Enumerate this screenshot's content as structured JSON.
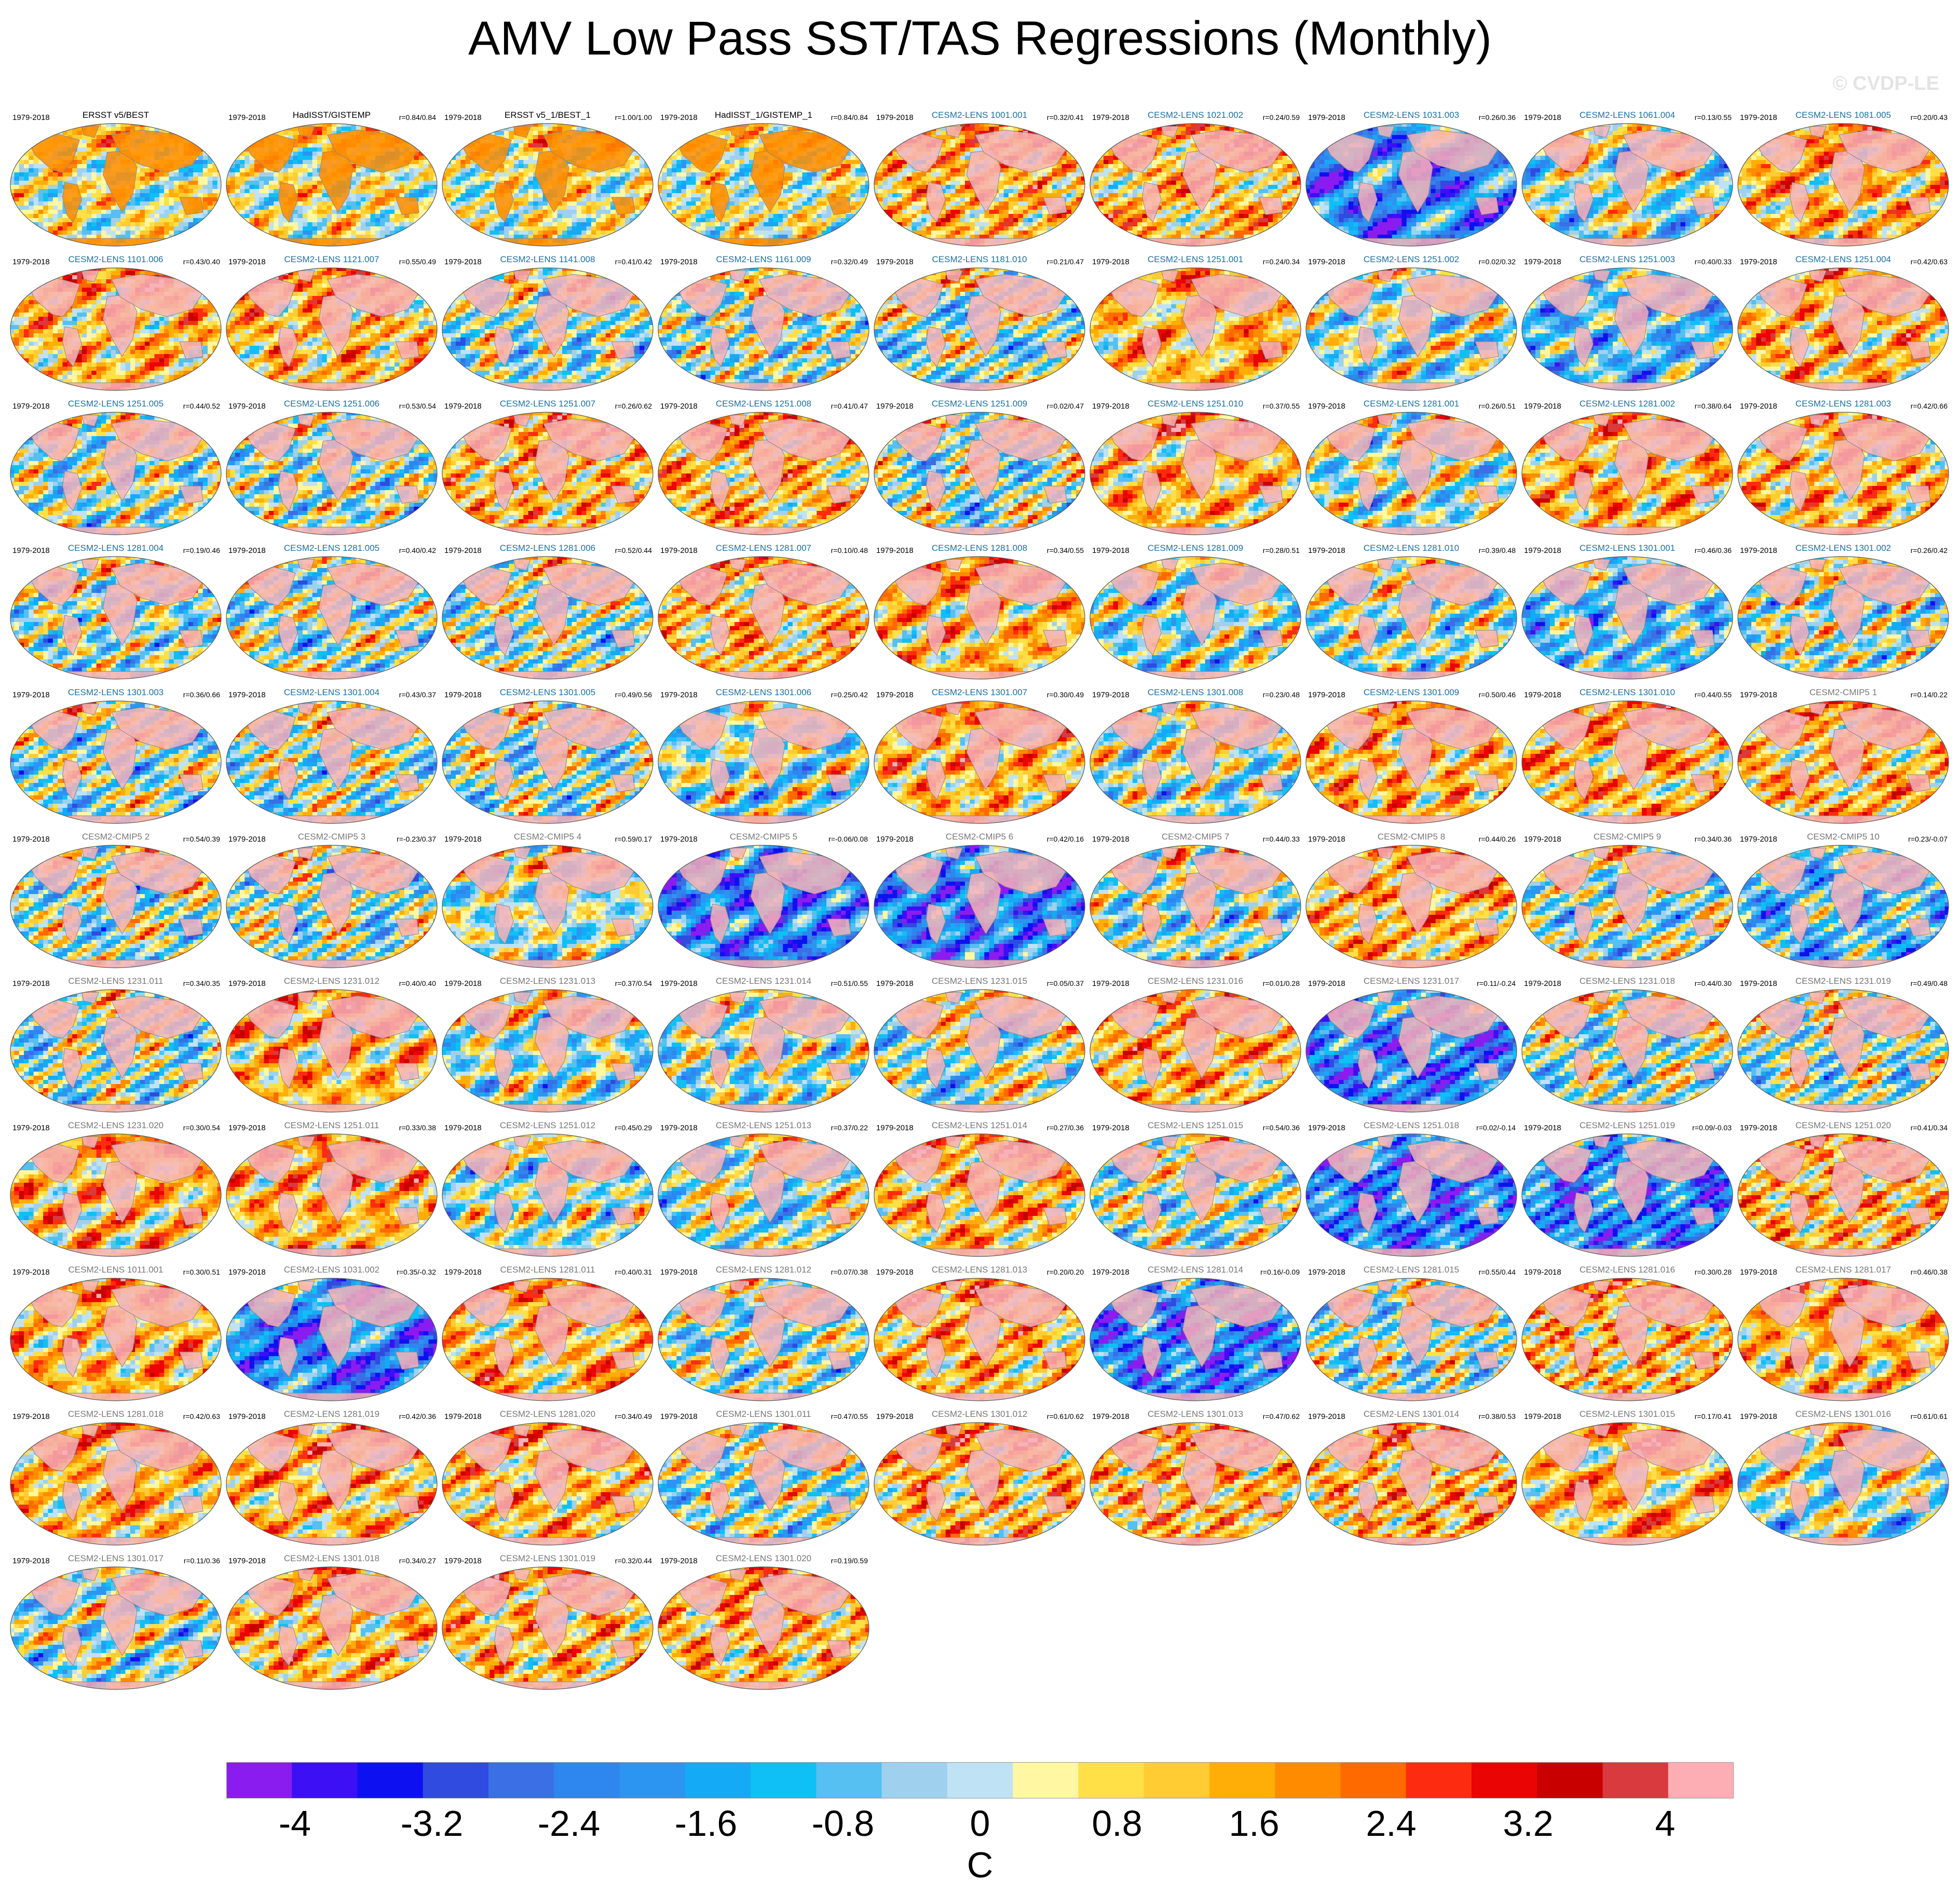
{
  "title": "AMV Low Pass SST/TAS Regressions (Monthly)",
  "watermark": "© CVDP-LE",
  "colors": {
    "obs_title": "#000000",
    "lens_title": "#1a6fa3",
    "cmip_title": "#777777",
    "land_mask": "#f6b3b8",
    "coast": "#888888"
  },
  "chart_data": {
    "type": "heatmap",
    "projection": "global map",
    "period": "1979-2018",
    "panel_columns": 9,
    "panels": [
      {
        "title": "ERSST v5/BEST",
        "r": "",
        "kind": "obs",
        "pattern": "obs"
      },
      {
        "title": "HadISST/GISTEMP",
        "r": "r=0.84/0.84",
        "kind": "obs",
        "pattern": "obs"
      },
      {
        "title": "ERSST v5_1/BEST_1",
        "r": "r=1.00/1.00",
        "kind": "obs",
        "pattern": "obs"
      },
      {
        "title": "HadISST_1/GISTEMP_1",
        "r": "r=0.84/0.84",
        "kind": "obs",
        "pattern": "obs"
      },
      {
        "title": "CESM2-LENS 1001.001",
        "r": "r=0.32/0.41",
        "kind": "lens",
        "pattern": "warm"
      },
      {
        "title": "CESM2-LENS 1021.002",
        "r": "r=0.24/0.59",
        "kind": "lens",
        "pattern": "warm"
      },
      {
        "title": "CESM2-LENS 1031.003",
        "r": "r=0.26/0.36",
        "kind": "lens",
        "pattern": "strongcold"
      },
      {
        "title": "CESM2-LENS 1061.004",
        "r": "r=0.13/0.55",
        "kind": "lens",
        "pattern": "mixed"
      },
      {
        "title": "CESM2-LENS 1081.005",
        "r": "r=0.20/0.43",
        "kind": "lens",
        "pattern": "warm"
      },
      {
        "title": "CESM2-LENS 1101.006",
        "r": "r=0.43/0.40",
        "kind": "lens",
        "pattern": "warm"
      },
      {
        "title": "CESM2-LENS 1121.007",
        "r": "r=0.55/0.49",
        "kind": "lens",
        "pattern": "warm"
      },
      {
        "title": "CESM2-LENS 1141.008",
        "r": "r=0.41/0.42",
        "kind": "lens",
        "pattern": "mixed"
      },
      {
        "title": "CESM2-LENS 1161.009",
        "r": "r=0.32/0.49",
        "kind": "lens",
        "pattern": "mixed"
      },
      {
        "title": "CESM2-LENS 1181.010",
        "r": "r=0.21/0.47",
        "kind": "lens",
        "pattern": "mixed"
      },
      {
        "title": "CESM2-LENS 1251.001",
        "r": "r=0.24/0.34",
        "kind": "lens",
        "pattern": "warm"
      },
      {
        "title": "CESM2-LENS 1251.002",
        "r": "r=0.02/0.32",
        "kind": "lens",
        "pattern": "mixed"
      },
      {
        "title": "CESM2-LENS 1251.003",
        "r": "r=0.40/0.33",
        "kind": "lens",
        "pattern": "cold"
      },
      {
        "title": "CESM2-LENS 1251.004",
        "r": "r=0.42/0.63",
        "kind": "lens",
        "pattern": "warm"
      },
      {
        "title": "CESM2-LENS 1251.005",
        "r": "r=0.44/0.52",
        "kind": "lens",
        "pattern": "mixed"
      },
      {
        "title": "CESM2-LENS 1251.006",
        "r": "r=0.53/0.54",
        "kind": "lens",
        "pattern": "mixed"
      },
      {
        "title": "CESM2-LENS 1251.007",
        "r": "r=0.26/0.62",
        "kind": "lens",
        "pattern": "warm"
      },
      {
        "title": "CESM2-LENS 1251.008",
        "r": "r=0.41/0.47",
        "kind": "lens",
        "pattern": "warm"
      },
      {
        "title": "CESM2-LENS 1251.009",
        "r": "r=0.02/0.47",
        "kind": "lens",
        "pattern": "mixed"
      },
      {
        "title": "CESM2-LENS 1251.010",
        "r": "r=0.37/0.55",
        "kind": "lens",
        "pattern": "warm"
      },
      {
        "title": "CESM2-LENS 1281.001",
        "r": "r=0.26/0.51",
        "kind": "lens",
        "pattern": "mixed"
      },
      {
        "title": "CESM2-LENS 1281.002",
        "r": "r=0.38/0.64",
        "kind": "lens",
        "pattern": "warm"
      },
      {
        "title": "CESM2-LENS 1281.003",
        "r": "r=0.42/0.66",
        "kind": "lens",
        "pattern": "warm"
      },
      {
        "title": "CESM2-LENS 1281.004",
        "r": "r=0.19/0.46",
        "kind": "lens",
        "pattern": "mixed"
      },
      {
        "title": "CESM2-LENS 1281.005",
        "r": "r=0.40/0.42",
        "kind": "lens",
        "pattern": "mixed"
      },
      {
        "title": "CESM2-LENS 1281.006",
        "r": "r=0.52/0.44",
        "kind": "lens",
        "pattern": "mixed"
      },
      {
        "title": "CESM2-LENS 1281.007",
        "r": "r=0.10/0.48",
        "kind": "lens",
        "pattern": "warm"
      },
      {
        "title": "CESM2-LENS 1281.008",
        "r": "r=0.34/0.55",
        "kind": "lens",
        "pattern": "warm"
      },
      {
        "title": "CESM2-LENS 1281.009",
        "r": "r=0.28/0.51",
        "kind": "lens",
        "pattern": "mixed"
      },
      {
        "title": "CESM2-LENS 1281.010",
        "r": "r=0.39/0.48",
        "kind": "lens",
        "pattern": "mixed"
      },
      {
        "title": "CESM2-LENS 1301.001",
        "r": "r=0.46/0.36",
        "kind": "lens",
        "pattern": "cold"
      },
      {
        "title": "CESM2-LENS 1301.002",
        "r": "r=0.26/0.42",
        "kind": "lens",
        "pattern": "mixed"
      },
      {
        "title": "CESM2-LENS 1301.003",
        "r": "r=0.36/0.66",
        "kind": "lens",
        "pattern": "mixed"
      },
      {
        "title": "CESM2-LENS 1301.004",
        "r": "r=0.43/0.37",
        "kind": "lens",
        "pattern": "mixed"
      },
      {
        "title": "CESM2-LENS 1301.005",
        "r": "r=0.49/0.56",
        "kind": "lens",
        "pattern": "mixed"
      },
      {
        "title": "CESM2-LENS 1301.006",
        "r": "r=0.25/0.42",
        "kind": "lens",
        "pattern": "mixed"
      },
      {
        "title": "CESM2-LENS 1301.007",
        "r": "r=0.30/0.49",
        "kind": "lens",
        "pattern": "warm"
      },
      {
        "title": "CESM2-LENS 1301.008",
        "r": "r=0.23/0.48",
        "kind": "lens",
        "pattern": "mixed"
      },
      {
        "title": "CESM2-LENS 1301.009",
        "r": "r=0.50/0.46",
        "kind": "lens",
        "pattern": "warm"
      },
      {
        "title": "CESM2-LENS 1301.010",
        "r": "r=0.44/0.55",
        "kind": "lens",
        "pattern": "warm"
      },
      {
        "title": "CESM2-CMIP5 1",
        "r": "r=0.14/0.22",
        "kind": "cmip",
        "pattern": "warm"
      },
      {
        "title": "CESM2-CMIP5 2",
        "r": "r=0.54/0.39",
        "kind": "cmip",
        "pattern": "mixed"
      },
      {
        "title": "CESM2-CMIP5 3",
        "r": "r=-0.23/0.37",
        "kind": "cmip",
        "pattern": "mixed"
      },
      {
        "title": "CESM2-CMIP5 4",
        "r": "r=0.59/0.17",
        "kind": "cmip",
        "pattern": "mixed"
      },
      {
        "title": "CESM2-CMIP5 5",
        "r": "r=-0.06/0.08",
        "kind": "cmip",
        "pattern": "strongcold"
      },
      {
        "title": "CESM2-CMIP5 6",
        "r": "r=0.42/0.16",
        "kind": "cmip",
        "pattern": "strongcold"
      },
      {
        "title": "CESM2-CMIP5 7",
        "r": "r=0.44/0.33",
        "kind": "cmip",
        "pattern": "mixed"
      },
      {
        "title": "CESM2-CMIP5 8",
        "r": "r=0.44/0.26",
        "kind": "cmip",
        "pattern": "warm"
      },
      {
        "title": "CESM2-CMIP5 9",
        "r": "r=0.34/0.36",
        "kind": "cmip",
        "pattern": "mixed"
      },
      {
        "title": "CESM2-CMIP5 10",
        "r": "r=0.23/-0.07",
        "kind": "cmip",
        "pattern": "cold"
      },
      {
        "title": "CESM2-LENS 1231.011",
        "r": "r=0.34/0.35",
        "kind": "cmip",
        "pattern": "mixed"
      },
      {
        "title": "CESM2-LENS 1231.012",
        "r": "r=0.40/0.40",
        "kind": "cmip",
        "pattern": "warm"
      },
      {
        "title": "CESM2-LENS 1231.013",
        "r": "r=0.37/0.54",
        "kind": "cmip",
        "pattern": "mixed"
      },
      {
        "title": "CESM2-LENS 1231.014",
        "r": "r=0.51/0.55",
        "kind": "cmip",
        "pattern": "mixed"
      },
      {
        "title": "CESM2-LENS 1231.015",
        "r": "r=0.05/0.37",
        "kind": "cmip",
        "pattern": "mixed"
      },
      {
        "title": "CESM2-LENS 1231.016",
        "r": "r=0.01/0.28",
        "kind": "cmip",
        "pattern": "warm"
      },
      {
        "title": "CESM2-LENS 1231.017",
        "r": "r=0.11/-0.24",
        "kind": "cmip",
        "pattern": "strongcold"
      },
      {
        "title": "CESM2-LENS 1231.018",
        "r": "r=0.44/0.30",
        "kind": "cmip",
        "pattern": "mixed"
      },
      {
        "title": "CESM2-LENS 1231.019",
        "r": "r=0.49/0.48",
        "kind": "cmip",
        "pattern": "mixed"
      },
      {
        "title": "CESM2-LENS 1231.020",
        "r": "r=0.30/0.54",
        "kind": "cmip",
        "pattern": "warm"
      },
      {
        "title": "CESM2-LENS 1251.011",
        "r": "r=0.33/0.38",
        "kind": "cmip",
        "pattern": "warm"
      },
      {
        "title": "CESM2-LENS 1251.012",
        "r": "r=0.45/0.29",
        "kind": "cmip",
        "pattern": "mixed"
      },
      {
        "title": "CESM2-LENS 1251.013",
        "r": "r=0.37/0.22",
        "kind": "cmip",
        "pattern": "mixed"
      },
      {
        "title": "CESM2-LENS 1251.014",
        "r": "r=0.27/0.36",
        "kind": "cmip",
        "pattern": "warm"
      },
      {
        "title": "CESM2-LENS 1251.015",
        "r": "r=0.54/0.36",
        "kind": "cmip",
        "pattern": "mixed"
      },
      {
        "title": "CESM2-LENS 1251.018",
        "r": "r=0.02/-0.14",
        "kind": "cmip",
        "pattern": "strongcold"
      },
      {
        "title": "CESM2-LENS 1251.019",
        "r": "r=0.09/-0.03",
        "kind": "cmip",
        "pattern": "strongcold"
      },
      {
        "title": "CESM2-LENS 1251.020",
        "r": "r=0.41/0.34",
        "kind": "cmip",
        "pattern": "warm"
      },
      {
        "title": "CESM2-LENS 1011.001",
        "r": "r=0.30/0.51",
        "kind": "cmip",
        "pattern": "warm"
      },
      {
        "title": "CESM2-LENS 1031.002",
        "r": "r=0.35/-0.32",
        "kind": "cmip",
        "pattern": "strongcold"
      },
      {
        "title": "CESM2-LENS 1281.011",
        "r": "r=0.40/0.31",
        "kind": "cmip",
        "pattern": "warm"
      },
      {
        "title": "CESM2-LENS 1281.012",
        "r": "r=0.07/0.38",
        "kind": "cmip",
        "pattern": "mixed"
      },
      {
        "title": "CESM2-LENS 1281.013",
        "r": "r=0.20/0.20",
        "kind": "cmip",
        "pattern": "warm"
      },
      {
        "title": "CESM2-LENS 1281.014",
        "r": "r=0.16/-0.09",
        "kind": "cmip",
        "pattern": "strongcold"
      },
      {
        "title": "CESM2-LENS 1281.015",
        "r": "r=0.55/0.44",
        "kind": "cmip",
        "pattern": "mixed"
      },
      {
        "title": "CESM2-LENS 1281.016",
        "r": "r=0.30/0.28",
        "kind": "cmip",
        "pattern": "warm"
      },
      {
        "title": "CESM2-LENS 1281.017",
        "r": "r=0.46/0.38",
        "kind": "cmip",
        "pattern": "warm"
      },
      {
        "title": "CESM2-LENS 1281.018",
        "r": "r=0.42/0.63",
        "kind": "cmip",
        "pattern": "warm"
      },
      {
        "title": "CESM2-LENS 1281.019",
        "r": "r=0.42/0.36",
        "kind": "cmip",
        "pattern": "warm"
      },
      {
        "title": "CESM2-LENS 1281.020",
        "r": "r=0.34/0.49",
        "kind": "cmip",
        "pattern": "warm"
      },
      {
        "title": "CESM2-LENS 1301.011",
        "r": "r=0.47/0.55",
        "kind": "cmip",
        "pattern": "mixed"
      },
      {
        "title": "CESM2-LENS 1301.012",
        "r": "r=0.61/0.62",
        "kind": "cmip",
        "pattern": "warm"
      },
      {
        "title": "CESM2-LENS 1301.013",
        "r": "r=0.47/0.62",
        "kind": "cmip",
        "pattern": "warm"
      },
      {
        "title": "CESM2-LENS 1301.014",
        "r": "r=0.38/0.53",
        "kind": "cmip",
        "pattern": "warm"
      },
      {
        "title": "CESM2-LENS 1301.015",
        "r": "r=0.17/0.41",
        "kind": "cmip",
        "pattern": "warm"
      },
      {
        "title": "CESM2-LENS 1301.016",
        "r": "r=0.61/0.61",
        "kind": "cmip",
        "pattern": "mixed"
      },
      {
        "title": "CESM2-LENS 1301.017",
        "r": "r=0.11/0.36",
        "kind": "cmip",
        "pattern": "mixed"
      },
      {
        "title": "CESM2-LENS 1301.018",
        "r": "r=0.34/0.27",
        "kind": "cmip",
        "pattern": "warm"
      },
      {
        "title": "CESM2-LENS 1301.019",
        "r": "r=0.32/0.44",
        "kind": "cmip",
        "pattern": "warm"
      },
      {
        "title": "CESM2-LENS 1301.020",
        "r": "r=0.19/0.59",
        "kind": "cmip",
        "pattern": "warm"
      }
    ],
    "colorbar": {
      "label": "C",
      "min": -4.4,
      "max": 4.4,
      "step": 0.4,
      "tick_labels": [
        "-4",
        "-3.2",
        "-2.4",
        "-1.6",
        "-0.8",
        "0",
        "0.8",
        "1.6",
        "2.4",
        "3.2",
        "4"
      ],
      "tick_values": [
        -4,
        -3.2,
        -2.4,
        -1.6,
        -0.8,
        0,
        0.8,
        1.6,
        2.4,
        3.2,
        4
      ],
      "colors": [
        "#8b1cf0",
        "#3d0ff5",
        "#0d11f2",
        "#2f4be0",
        "#3a6fe6",
        "#2e86ef",
        "#2c95f2",
        "#15aaf5",
        "#0ec0f5",
        "#55c0f1",
        "#9fd1ee",
        "#bfe2f4",
        "#fff7a1",
        "#ffe046",
        "#ffcc33",
        "#ffae08",
        "#ff8c00",
        "#ff6a00",
        "#fd2b10",
        "#ea0404",
        "#c80000",
        "#d83a3e",
        "#fcaeb4"
      ]
    }
  }
}
